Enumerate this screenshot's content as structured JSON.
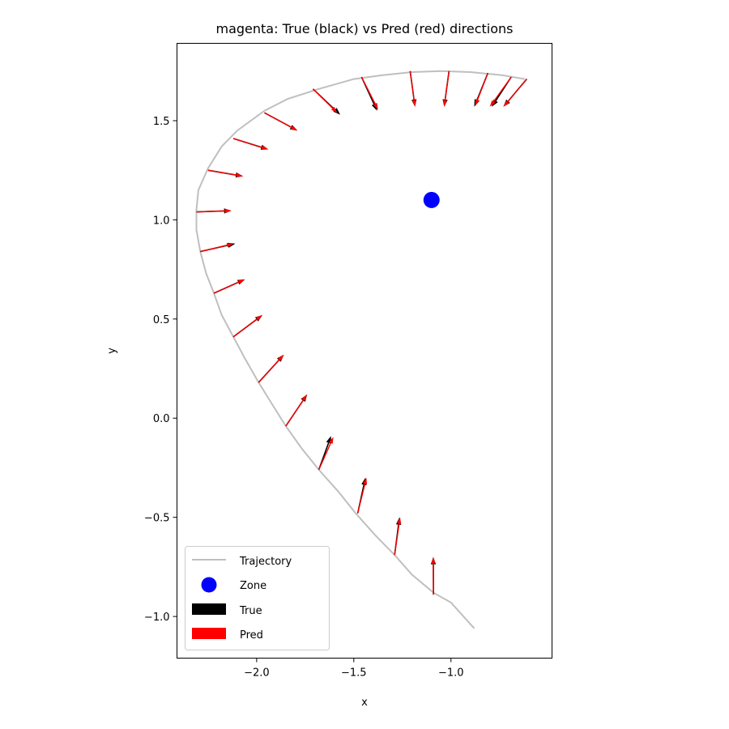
{
  "chart_data": {
    "type": "quiver",
    "title": "magenta: True (black) vs Pred (red) directions",
    "xlabel": "x",
    "ylabel": "y",
    "xlim": [
      -2.41,
      -0.48
    ],
    "ylim": [
      -1.21,
      1.89
    ],
    "xticks": [
      -2.0,
      -1.5,
      -1.0
    ],
    "xtick_labels": [
      "−2.0",
      "−1.5",
      "−1.0"
    ],
    "yticks": [
      -1.0,
      -0.5,
      0.0,
      0.5,
      1.0,
      1.5
    ],
    "ytick_labels": [
      "−1.0",
      "−0.5",
      "0.0",
      "0.5",
      "1.0",
      "1.5"
    ],
    "grid": false,
    "legend_placement": "lower-left",
    "colors": {
      "trajectory": "#bfbfbf",
      "zone": "#0000ff",
      "true": "#000000",
      "pred": "#ff0000"
    },
    "legend": [
      {
        "label": "Trajectory",
        "kind": "line",
        "color": "#bfbfbf"
      },
      {
        "label": "Zone",
        "kind": "dot",
        "color": "#0000ff"
      },
      {
        "label": "True",
        "kind": "patch",
        "color": "#000000"
      },
      {
        "label": "Pred",
        "kind": "patch",
        "color": "#ff0000"
      }
    ],
    "zone": {
      "x": -1.1,
      "y": 1.1
    },
    "trajectory": [
      [
        -0.88,
        -1.06
      ],
      [
        -1.0,
        -0.93
      ],
      [
        -1.09,
        -0.88
      ],
      [
        -1.2,
        -0.79
      ],
      [
        -1.29,
        -0.69
      ],
      [
        -1.39,
        -0.59
      ],
      [
        -1.49,
        -0.48
      ],
      [
        -1.58,
        -0.37
      ],
      [
        -1.68,
        -0.26
      ],
      [
        -1.77,
        -0.15
      ],
      [
        -1.85,
        -0.04
      ],
      [
        -1.92,
        0.07
      ],
      [
        -1.99,
        0.18
      ],
      [
        -2.06,
        0.3
      ],
      [
        -2.12,
        0.41
      ],
      [
        -2.18,
        0.52
      ],
      [
        -2.22,
        0.63
      ],
      [
        -2.26,
        0.73
      ],
      [
        -2.29,
        0.84
      ],
      [
        -2.31,
        0.95
      ],
      [
        -2.31,
        1.05
      ],
      [
        -2.3,
        1.15
      ],
      [
        -2.25,
        1.26
      ],
      [
        -2.18,
        1.37
      ],
      [
        -2.1,
        1.45
      ],
      [
        -1.96,
        1.55
      ],
      [
        -1.84,
        1.61
      ],
      [
        -1.68,
        1.66
      ],
      [
        -1.5,
        1.71
      ],
      [
        -1.35,
        1.73
      ],
      [
        -1.2,
        1.745
      ],
      [
        -1.05,
        1.75
      ],
      [
        -0.9,
        1.745
      ],
      [
        -0.74,
        1.73
      ],
      [
        -0.62,
        1.71
      ]
    ],
    "arrows": [
      {
        "x": -1.09,
        "y": -0.89,
        "true_dx": -0.001,
        "true_dy": 0.19,
        "pred_dx": -0.001,
        "pred_dy": 0.19
      },
      {
        "x": -1.29,
        "y": -0.69,
        "true_dx": 0.025,
        "true_dy": 0.19,
        "pred_dx": 0.028,
        "pred_dy": 0.19
      },
      {
        "x": -1.48,
        "y": -0.48,
        "true_dx": 0.04,
        "true_dy": 0.18,
        "pred_dx": 0.045,
        "pred_dy": 0.18
      },
      {
        "x": -1.68,
        "y": -0.26,
        "true_dx": 0.063,
        "true_dy": 0.17,
        "pred_dx": 0.075,
        "pred_dy": 0.165
      },
      {
        "x": -1.85,
        "y": -0.04,
        "true_dx": 0.11,
        "true_dy": 0.16,
        "pred_dx": 0.11,
        "pred_dy": 0.16
      },
      {
        "x": -1.99,
        "y": 0.18,
        "true_dx": 0.13,
        "true_dy": 0.14,
        "pred_dx": 0.13,
        "pred_dy": 0.14
      },
      {
        "x": -2.12,
        "y": 0.41,
        "true_dx": 0.15,
        "true_dy": 0.11,
        "pred_dx": 0.15,
        "pred_dy": 0.11
      },
      {
        "x": -2.22,
        "y": 0.63,
        "true_dx": 0.16,
        "true_dy": 0.07,
        "pred_dx": 0.16,
        "pred_dy": 0.07
      },
      {
        "x": -2.29,
        "y": 0.84,
        "true_dx": 0.18,
        "true_dy": 0.04,
        "pred_dx": 0.17,
        "pred_dy": 0.04
      },
      {
        "x": -2.31,
        "y": 1.04,
        "true_dx": 0.18,
        "true_dy": 0.006,
        "pred_dx": 0.18,
        "pred_dy": 0.006
      },
      {
        "x": -2.25,
        "y": 1.25,
        "true_dx": 0.18,
        "true_dy": -0.03,
        "pred_dx": 0.18,
        "pred_dy": -0.03
      },
      {
        "x": -2.12,
        "y": 1.41,
        "true_dx": 0.18,
        "true_dy": -0.055,
        "pred_dx": 0.18,
        "pred_dy": -0.055
      },
      {
        "x": -1.96,
        "y": 1.54,
        "true_dx": 0.17,
        "true_dy": -0.09,
        "pred_dx": 0.17,
        "pred_dy": -0.09
      },
      {
        "x": -1.71,
        "y": 1.66,
        "true_dx": 0.14,
        "true_dy": -0.13,
        "pred_dx": 0.125,
        "pred_dy": -0.12
      },
      {
        "x": -1.46,
        "y": 1.72,
        "true_dx": 0.08,
        "true_dy": -0.17,
        "pred_dx": 0.085,
        "pred_dy": -0.165
      },
      {
        "x": -1.21,
        "y": 1.75,
        "true_dx": 0.025,
        "true_dy": -0.18,
        "pred_dx": 0.025,
        "pred_dy": -0.18
      },
      {
        "x": -1.01,
        "y": 1.75,
        "true_dx": -0.025,
        "true_dy": -0.18,
        "pred_dx": -0.025,
        "pred_dy": -0.18
      },
      {
        "x": -0.81,
        "y": 1.74,
        "true_dx": -0.07,
        "true_dy": -0.17,
        "pred_dx": -0.065,
        "pred_dy": -0.165
      },
      {
        "x": -0.69,
        "y": 1.72,
        "true_dx": -0.1,
        "true_dy": -0.15,
        "pred_dx": -0.11,
        "pred_dy": -0.15
      },
      {
        "x": -0.61,
        "y": 1.71,
        "true_dx": -0.12,
        "true_dy": -0.14,
        "pred_dx": -0.12,
        "pred_dy": -0.14
      }
    ]
  }
}
